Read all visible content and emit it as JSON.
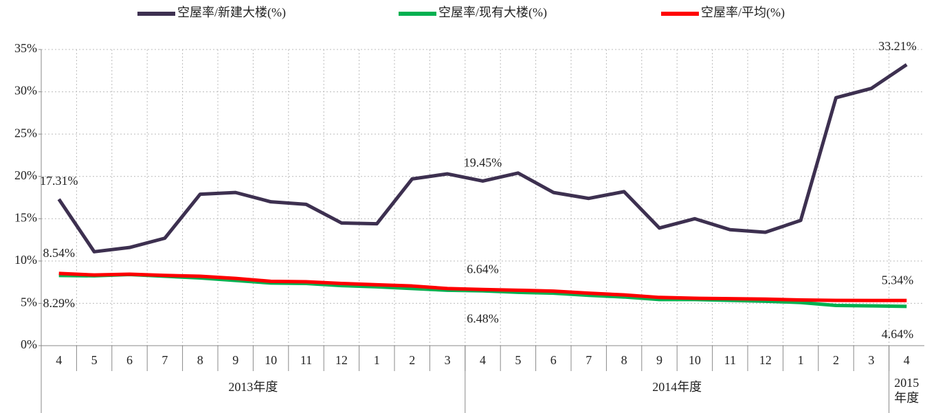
{
  "chart_data": {
    "type": "line",
    "categories": [
      "4",
      "5",
      "6",
      "7",
      "8",
      "9",
      "10",
      "11",
      "12",
      "1",
      "2",
      "3",
      "4",
      "5",
      "6",
      "7",
      "8",
      "9",
      "10",
      "11",
      "12",
      "1",
      "2",
      "3",
      "4"
    ],
    "groups": [
      {
        "label": "2013年度",
        "span": 12
      },
      {
        "label": "2014年度",
        "span": 12
      },
      {
        "label": "2015年度",
        "span": 1
      }
    ],
    "series": [
      {
        "name": "空屋率/新建大楼(%)",
        "color": "#3d3050",
        "values": [
          17.31,
          11.1,
          11.6,
          12.7,
          17.9,
          18.1,
          17.0,
          16.7,
          14.5,
          14.4,
          19.7,
          20.3,
          19.45,
          20.4,
          18.1,
          17.4,
          18.2,
          13.9,
          15.0,
          13.7,
          13.4,
          14.8,
          29.3,
          30.4,
          33.21
        ],
        "value_labels": [
          "17.31%",
          null,
          null,
          null,
          null,
          null,
          null,
          null,
          null,
          null,
          null,
          null,
          "19.45%",
          null,
          null,
          null,
          null,
          null,
          null,
          null,
          null,
          null,
          null,
          null,
          "33.21%"
        ]
      },
      {
        "name": "空屋率/现有大楼(%)",
        "color": "#00b050",
        "values": [
          8.29,
          8.25,
          8.4,
          8.2,
          8.0,
          7.7,
          7.4,
          7.35,
          7.1,
          6.95,
          6.75,
          6.55,
          6.48,
          6.3,
          6.2,
          5.95,
          5.75,
          5.45,
          5.45,
          5.35,
          5.25,
          5.1,
          4.75,
          4.7,
          4.64
        ],
        "value_labels": [
          "8.29%",
          null,
          null,
          null,
          null,
          null,
          null,
          null,
          null,
          null,
          null,
          null,
          "6.48%",
          null,
          null,
          null,
          null,
          null,
          null,
          null,
          null,
          null,
          null,
          null,
          "4.64%"
        ]
      },
      {
        "name": "空屋率/平均(%)",
        "color": "#ff0000",
        "values": [
          8.54,
          8.35,
          8.45,
          8.3,
          8.2,
          7.95,
          7.6,
          7.55,
          7.35,
          7.2,
          7.05,
          6.75,
          6.64,
          6.55,
          6.45,
          6.2,
          6.0,
          5.7,
          5.6,
          5.55,
          5.5,
          5.4,
          5.35,
          5.34,
          5.34
        ],
        "value_labels": [
          "8.54%",
          null,
          null,
          null,
          null,
          null,
          null,
          null,
          null,
          null,
          null,
          null,
          "6.64%",
          null,
          null,
          null,
          null,
          null,
          null,
          null,
          null,
          null,
          null,
          null,
          "5.34%"
        ]
      }
    ],
    "ylim": [
      0,
      35
    ],
    "yticks": [
      {
        "value": 0,
        "label": "0%"
      },
      {
        "value": 5,
        "label": "5%"
      },
      {
        "value": 10,
        "label": "10%"
      },
      {
        "value": 15,
        "label": "15%"
      },
      {
        "value": 20,
        "label": "20%"
      },
      {
        "value": 25,
        "label": "25%"
      },
      {
        "value": 30,
        "label": "30%"
      },
      {
        "value": 35,
        "label": "35%"
      }
    ],
    "grid": true,
    "legend": "top"
  }
}
